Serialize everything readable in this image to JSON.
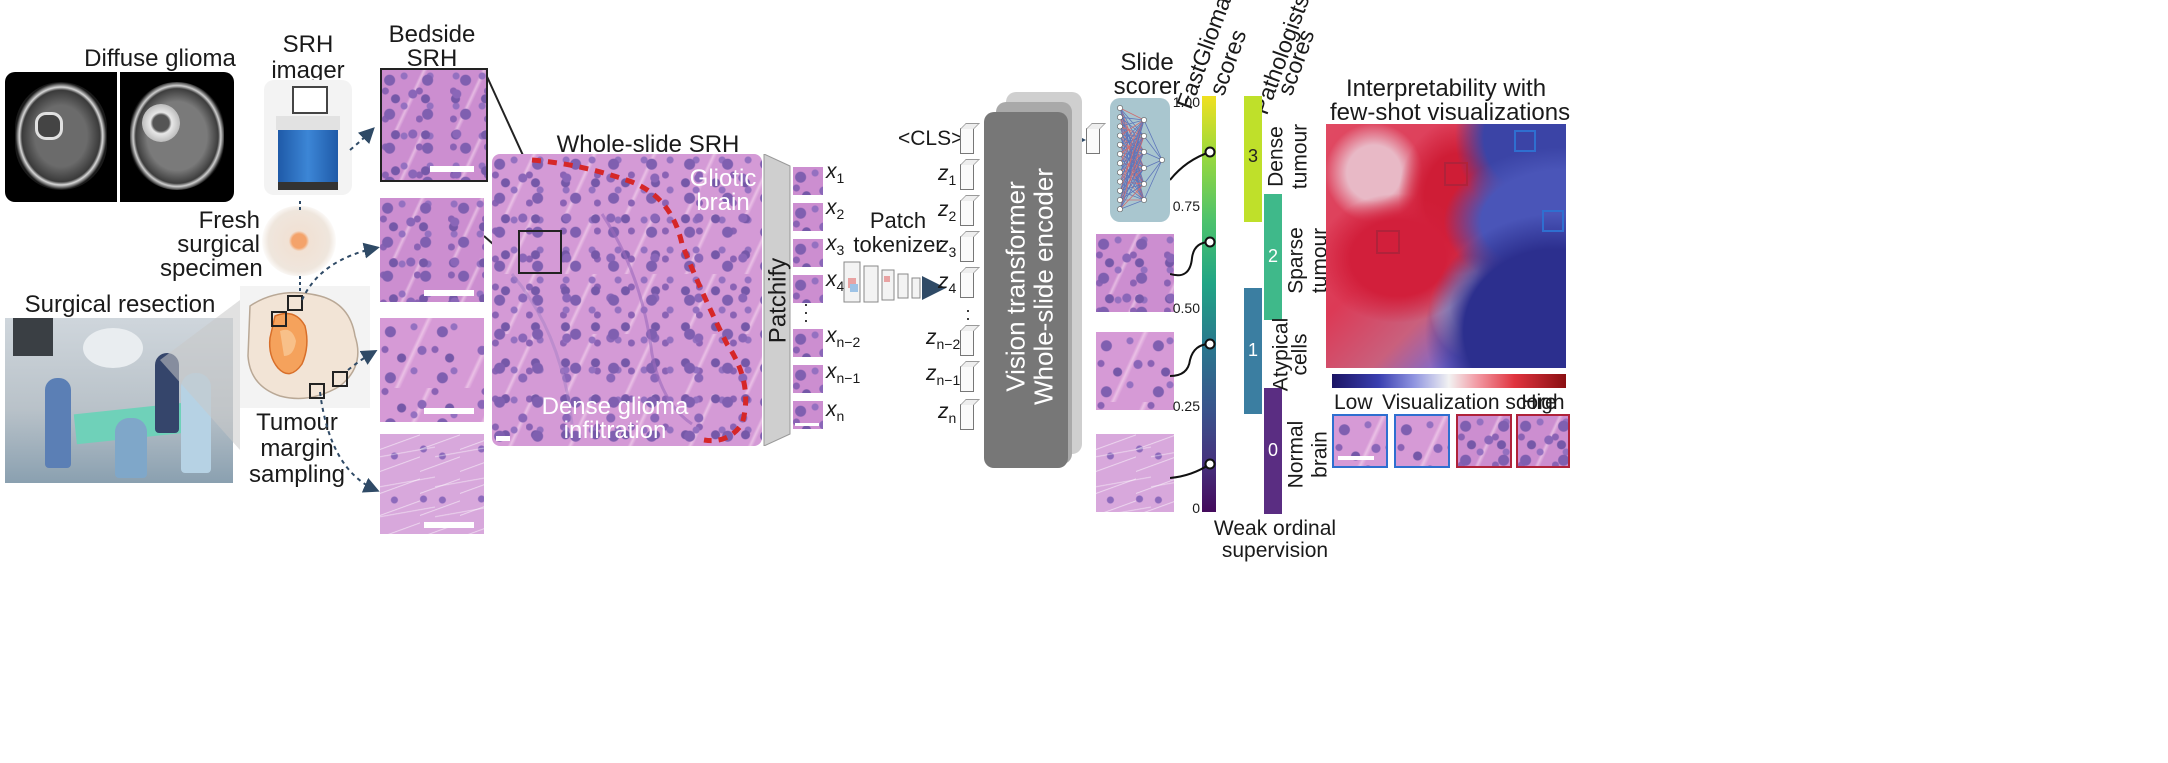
{
  "labels": {
    "diffuse_glioma": "Diffuse glioma",
    "srh_imager_1": "SRH",
    "srh_imager_2": "imager",
    "bedside_srh_1": "Bedside",
    "bedside_srh_2": "SRH",
    "fresh_1": "Fresh",
    "fresh_2": "surgical",
    "fresh_3": "specimen",
    "surgical_resection": "Surgical resection",
    "tumour_1": "Tumour",
    "tumour_2": "margin",
    "tumour_3": "sampling",
    "whole_slide_srh": "Whole-slide SRH",
    "gliotic_1": "Gliotic",
    "gliotic_2": "brain",
    "dense_infil_1": "Dense glioma",
    "dense_infil_2": "infiltration",
    "patchify": "Patchify",
    "patch_tokenizer_1": "Patch",
    "patch_tokenizer_2": "tokenizer",
    "cls": "<CLS>",
    "vit_1": "Vision transformer",
    "vit_2": "Whole-slide encoder",
    "slide_scorer_1": "Slide",
    "slide_scorer_2": "scorer",
    "fastglioma_1": "FastGlioma",
    "fastglioma_2": "scores",
    "pathologists_1": "Pathologists'",
    "pathologists_2": "scores",
    "weak_1": "Weak ordinal",
    "weak_2": "supervision",
    "interp_1": "Interpretability with",
    "interp_2": "few-shot visualizations",
    "low": "Low",
    "vis_score": "Visualization score",
    "high": "High"
  },
  "patch_labels": [
    {
      "base": "x",
      "sub": "1"
    },
    {
      "base": "x",
      "sub": "2"
    },
    {
      "base": "x",
      "sub": "3"
    },
    {
      "base": "x",
      "sub": "4"
    },
    {
      "base": "x",
      "sub": "n−2"
    },
    {
      "base": "x",
      "sub": "n−1"
    },
    {
      "base": "x",
      "sub": "n"
    }
  ],
  "token_labels": [
    {
      "base": "z",
      "sub": "1"
    },
    {
      "base": "z",
      "sub": "2"
    },
    {
      "base": "z",
      "sub": "3"
    },
    {
      "base": "z",
      "sub": "4"
    },
    {
      "base": "z",
      "sub": "n−2"
    },
    {
      "base": "z",
      "sub": "n−1"
    },
    {
      "base": "z",
      "sub": "n"
    }
  ],
  "score_ticks": [
    "1.00",
    "0.75",
    "0.50",
    "0.25",
    "0"
  ],
  "pathologist_bars": [
    {
      "num": "3",
      "name_1": "Dense",
      "name_2": "tumour",
      "color": "#bfe02a"
    },
    {
      "num": "2",
      "name_1": "Sparse",
      "name_2": "tumour",
      "color": "#3fb98a"
    },
    {
      "num": "1",
      "name_1": "Atypical",
      "name_2": "cells",
      "color": "#3b7ea1"
    },
    {
      "num": "0",
      "name_1": "Normal",
      "name_2": "brain",
      "color": "#5a2d82"
    }
  ],
  "colors": {
    "viridis_top": "#f0e020",
    "viridis_bottom": "#440a5c",
    "encoder": "#777777",
    "scorer": "#a9c6cf",
    "red_dash": "#d62728",
    "blue_arrow": "#2f4a66"
  }
}
